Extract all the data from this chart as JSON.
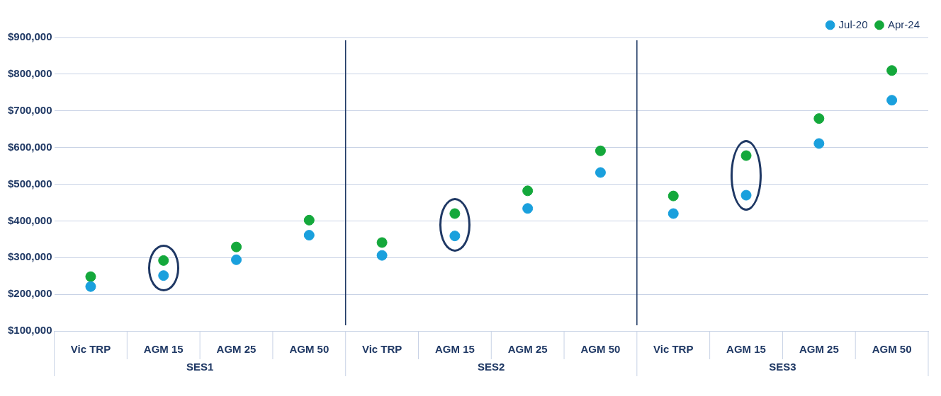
{
  "chart_data": {
    "type": "scatter",
    "categories": [
      "Vic TRP",
      "AGM 15",
      "AGM 25",
      "AGM 50",
      "Vic TRP",
      "AGM 15",
      "AGM 25",
      "AGM 50",
      "Vic TRP",
      "AGM 15",
      "AGM 25",
      "AGM 50"
    ],
    "series": [
      {
        "name": "Jul-20",
        "color": "#1aa0dd",
        "values": [
          221000,
          251000,
          294000,
          361000,
          306000,
          359000,
          434000,
          532000,
          420000,
          470000,
          611000,
          729000
        ]
      },
      {
        "name": "Apr-24",
        "color": "#14a83b",
        "values": [
          248000,
          292000,
          329000,
          402000,
          341000,
          420000,
          482000,
          591000,
          468000,
          578000,
          679000,
          810000
        ]
      }
    ],
    "annotations": [
      "SES1",
      "SES2",
      "SES3"
    ],
    "ylim": [
      100000,
      900000
    ],
    "yticks": [
      {
        "value": 100000,
        "label": "$100,000"
      },
      {
        "value": 200000,
        "label": "$200,000"
      },
      {
        "value": 300000,
        "label": "$300,000"
      },
      {
        "value": 400000,
        "label": "$400,000"
      },
      {
        "value": 500000,
        "label": "$500,000"
      },
      {
        "value": 600000,
        "label": "$600,000"
      },
      {
        "value": 700000,
        "label": "$700,000"
      },
      {
        "value": 800000,
        "label": "$800,000"
      },
      {
        "value": 900000,
        "label": "$900,000"
      }
    ],
    "grid": "y",
    "legend": "top right",
    "marker": "circle"
  }
}
